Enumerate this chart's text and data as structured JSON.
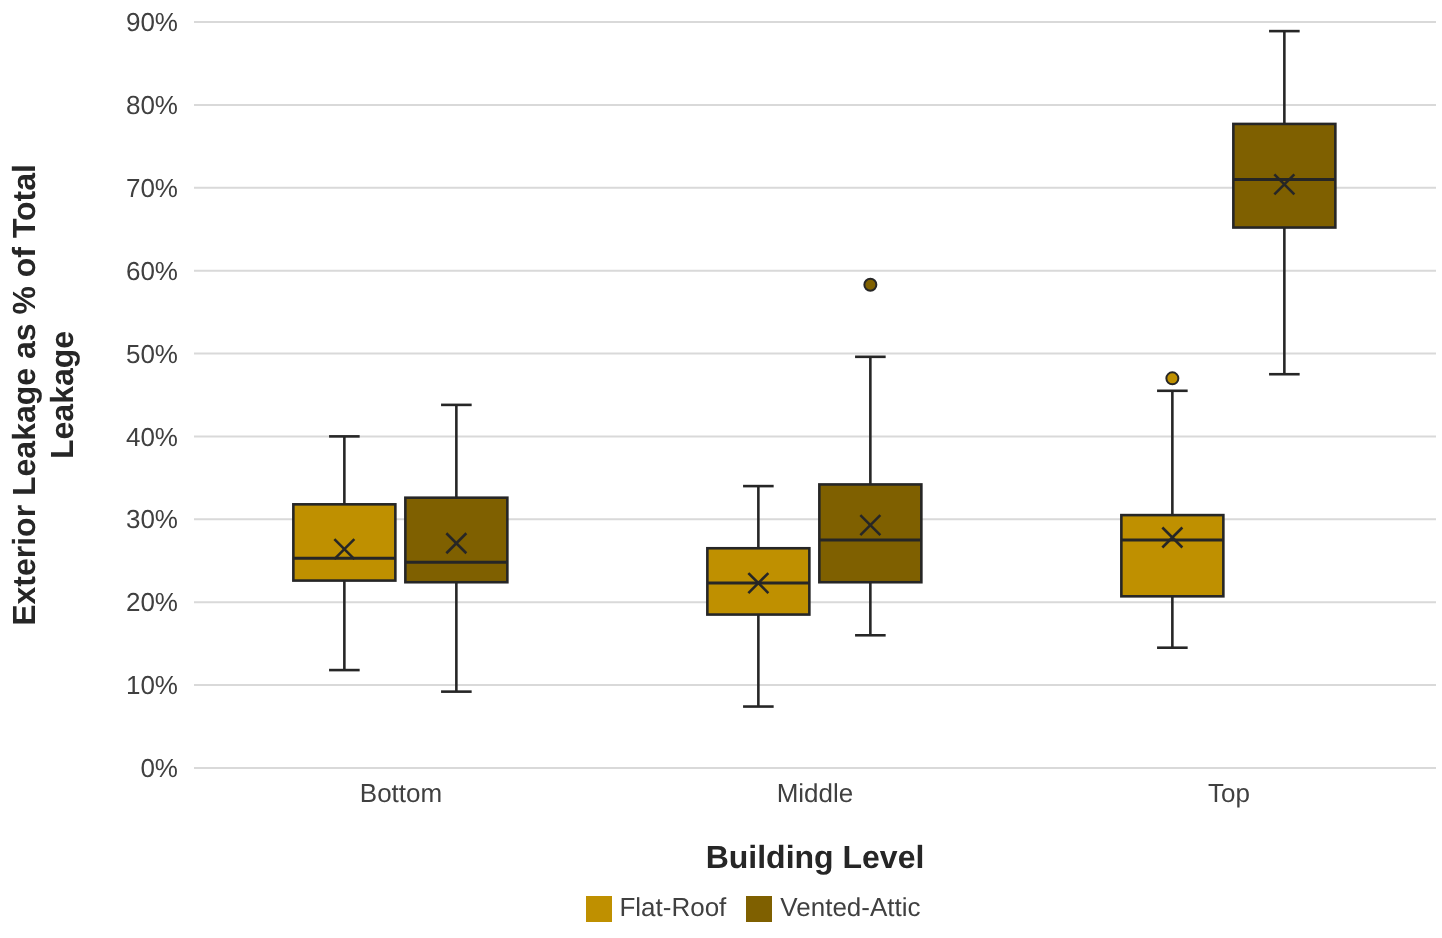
{
  "chart_data": {
    "type": "box",
    "xlabel": "Building Level",
    "ylabel": "Exterior Leakage as % of Total Leakage",
    "categories": [
      "Bottom",
      "Middle",
      "Top"
    ],
    "ylim": [
      0,
      90
    ],
    "yticks": [
      {
        "value": 0,
        "label": "0%"
      },
      {
        "value": 10,
        "label": "10%"
      },
      {
        "value": 20,
        "label": "20%"
      },
      {
        "value": 30,
        "label": "30%"
      },
      {
        "value": 40,
        "label": "40%"
      },
      {
        "value": 50,
        "label": "50%"
      },
      {
        "value": 60,
        "label": "60%"
      },
      {
        "value": 70,
        "label": "70%"
      },
      {
        "value": 80,
        "label": "80%"
      },
      {
        "value": 90,
        "label": "90%"
      }
    ],
    "grid": "y",
    "legend": "bottom",
    "series": [
      {
        "name": "Flat-Roof",
        "color": "#bf9000",
        "boxes": [
          {
            "low": 11.8,
            "q1": 22.6,
            "median": 25.3,
            "q3": 31.8,
            "high": 40,
            "mean": 26.4
          },
          {
            "low": 7.4,
            "q1": 18.5,
            "median": 22.3,
            "q3": 26.5,
            "high": 34,
            "mean": 22.3
          },
          {
            "low": 14.5,
            "q1": 20.7,
            "median": 27.5,
            "q3": 30.5,
            "high": 45.5,
            "mean": 27.8,
            "outliers": [
              47
            ]
          }
        ]
      },
      {
        "name": "Vented-Attic",
        "color": "#7f6000",
        "boxes": [
          {
            "low": 9.2,
            "q1": 22.4,
            "median": 24.8,
            "q3": 32.6,
            "high": 43.8,
            "mean": 27.1
          },
          {
            "low": 16,
            "q1": 22.4,
            "median": 27.5,
            "q3": 34.2,
            "high": 49.6,
            "mean": 29.3,
            "outliers": [
              58.3
            ]
          },
          {
            "low": 47.5,
            "q1": 65.2,
            "median": 71,
            "q3": 77.7,
            "high": 88.9,
            "mean": 70.4
          }
        ]
      }
    ]
  }
}
